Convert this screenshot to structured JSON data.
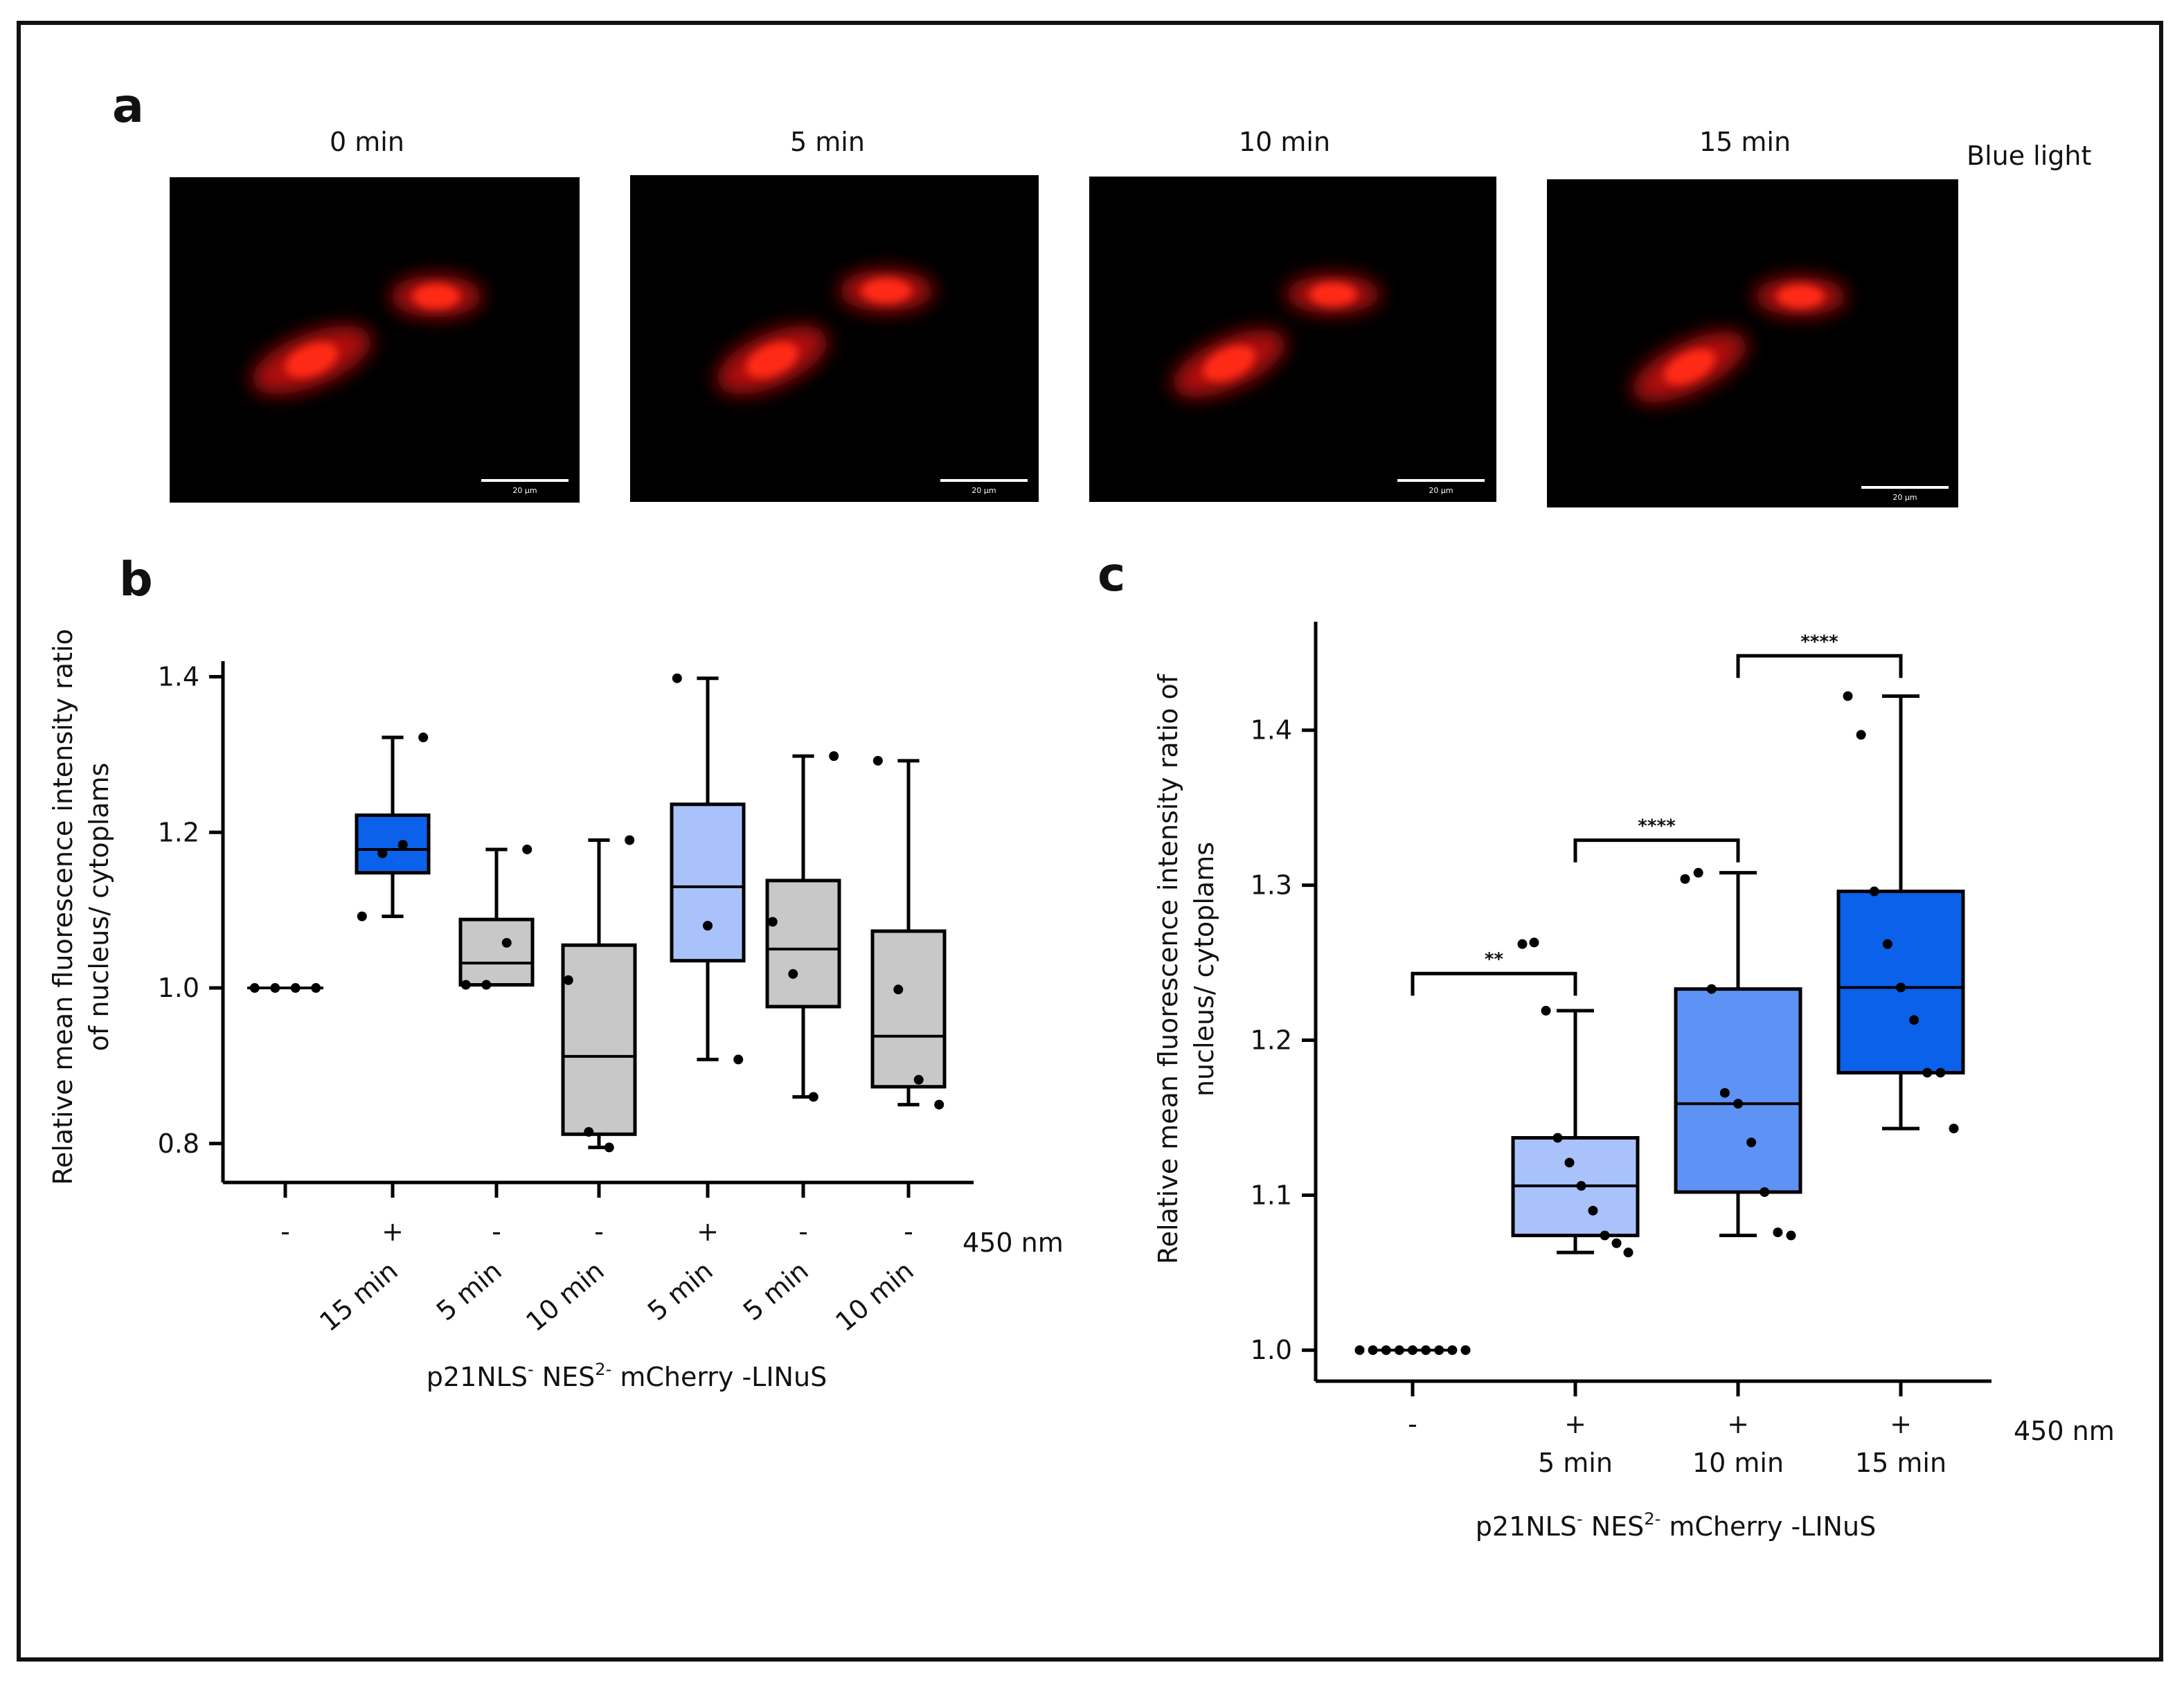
{
  "panels": {
    "a": {
      "label": "a",
      "time_labels": [
        "0 min",
        "5 min",
        "10 min",
        "15 min"
      ],
      "condition_label": "Blue light",
      "scale_bar_label": "20 µm"
    },
    "b": {
      "label": "b"
    },
    "c": {
      "label": "c"
    }
  },
  "colors": {
    "gray": "#c8c8c8",
    "light_blue": "#a9c2fb",
    "mid_blue": "#5e93f5",
    "dark_blue": "#0b61e9",
    "cell_red": "#e0140c",
    "black": "#000000"
  },
  "chart_data": [
    {
      "panel": "b",
      "type": "box",
      "ylabel_lines": [
        "Relative mean fluorescence intensity ratio",
        "of nucleus/ cytoplams"
      ],
      "ylim": [
        0.75,
        1.42
      ],
      "yticks": [
        0.8,
        1.0,
        1.2,
        1.4
      ],
      "ytick_labels": [
        "0.8",
        "1.0",
        "1.2",
        "1.4"
      ],
      "light_label": "450 nm",
      "xlabel": {
        "main": "p21NLS",
        "sup1": "-",
        "mid": " NES",
        "sup2": "2-",
        "tail": " mCherry -LINuS"
      },
      "groups": [
        {
          "light": "-",
          "time": "",
          "color": "black",
          "median": 1.0,
          "q1": 1.0,
          "q3": 1.0,
          "whislo": 1.0,
          "whishi": 1.0,
          "points": [
            1.0,
            1.0,
            1.0,
            1.0
          ]
        },
        {
          "light": "+",
          "time": "15 min",
          "color": "dark_blue",
          "median": 1.178,
          "q1": 1.148,
          "q3": 1.222,
          "whislo": 1.092,
          "whishi": 1.322,
          "points": [
            1.092,
            1.173,
            1.184,
            1.322
          ]
        },
        {
          "light": "-",
          "time": "5 min",
          "color": "gray",
          "median": 1.032,
          "q1": 1.004,
          "q3": 1.088,
          "whislo": 1.004,
          "whishi": 1.178,
          "points": [
            1.004,
            1.004,
            1.058,
            1.178
          ]
        },
        {
          "light": "-",
          "time": "10 min",
          "color": "gray",
          "median": 0.912,
          "q1": 0.812,
          "q3": 1.055,
          "whislo": 0.795,
          "whishi": 1.19,
          "points": [
            1.01,
            0.815,
            0.795,
            1.19
          ]
        },
        {
          "light": "+",
          "time": "5 min",
          "color": "light_blue",
          "median": 1.13,
          "q1": 1.035,
          "q3": 1.236,
          "whislo": 0.908,
          "whishi": 1.398,
          "points": [
            1.398,
            1.08,
            0.908
          ]
        },
        {
          "light": "-",
          "time": "5 min",
          "color": "gray",
          "median": 1.05,
          "q1": 0.976,
          "q3": 1.138,
          "whislo": 0.86,
          "whishi": 1.298,
          "points": [
            1.085,
            1.018,
            0.86,
            1.298
          ]
        },
        {
          "light": "-",
          "time": "10 min",
          "color": "gray",
          "median": 0.938,
          "q1": 0.873,
          "q3": 1.073,
          "whislo": 0.85,
          "whishi": 1.292,
          "points": [
            1.292,
            0.998,
            0.882,
            0.85
          ]
        }
      ]
    },
    {
      "panel": "c",
      "type": "box",
      "ylabel_lines": [
        "Relative mean fluorescence intensity ratio of",
        "nucleus/ cytoplams"
      ],
      "ylim": [
        0.98,
        1.47
      ],
      "yticks": [
        1.0,
        1.1,
        1.2,
        1.3,
        1.4
      ],
      "ytick_labels": [
        "1.0",
        "1.1",
        "1.2",
        "1.3",
        "1.4"
      ],
      "light_label": "450 nm",
      "xlabel": {
        "main": "p21NLS",
        "sup1": "-",
        "mid": " NES",
        "sup2": "2-",
        "tail": " mCherry -LINuS"
      },
      "groups": [
        {
          "light": "-",
          "time": "",
          "color": "black",
          "median": 1.0,
          "q1": 1.0,
          "q3": 1.0,
          "whislo": 1.0,
          "whishi": 1.0,
          "points": [
            1.0,
            1.0,
            1.0,
            1.0,
            1.0,
            1.0,
            1.0,
            1.0,
            1.0
          ]
        },
        {
          "light": "+",
          "time": "5 min",
          "color": "light_blue",
          "median": 1.106,
          "q1": 1.074,
          "q3": 1.137,
          "whislo": 1.063,
          "whishi": 1.219,
          "points": [
            1.262,
            1.263,
            1.219,
            1.137,
            1.121,
            1.106,
            1.09,
            1.074,
            1.069,
            1.063
          ]
        },
        {
          "light": "+",
          "time": "10 min",
          "color": "mid_blue",
          "median": 1.159,
          "q1": 1.102,
          "q3": 1.233,
          "whislo": 1.074,
          "whishi": 1.308,
          "points": [
            1.304,
            1.308,
            1.233,
            1.166,
            1.159,
            1.134,
            1.102,
            1.076,
            1.074
          ]
        },
        {
          "light": "+",
          "time": "15 min",
          "color": "dark_blue",
          "median": 1.234,
          "q1": 1.179,
          "q3": 1.296,
          "whislo": 1.143,
          "whishi": 1.422,
          "points": [
            1.422,
            1.397,
            1.296,
            1.262,
            1.234,
            1.213,
            1.179,
            1.179,
            1.143
          ]
        }
      ],
      "significance": [
        {
          "label": "**",
          "from": 0,
          "to": 1,
          "level": 1.243
        },
        {
          "label": "****",
          "from": 1,
          "to": 2,
          "level": 1.329
        },
        {
          "label": "****",
          "from": 2,
          "to": 3,
          "level": 1.448
        }
      ]
    }
  ]
}
